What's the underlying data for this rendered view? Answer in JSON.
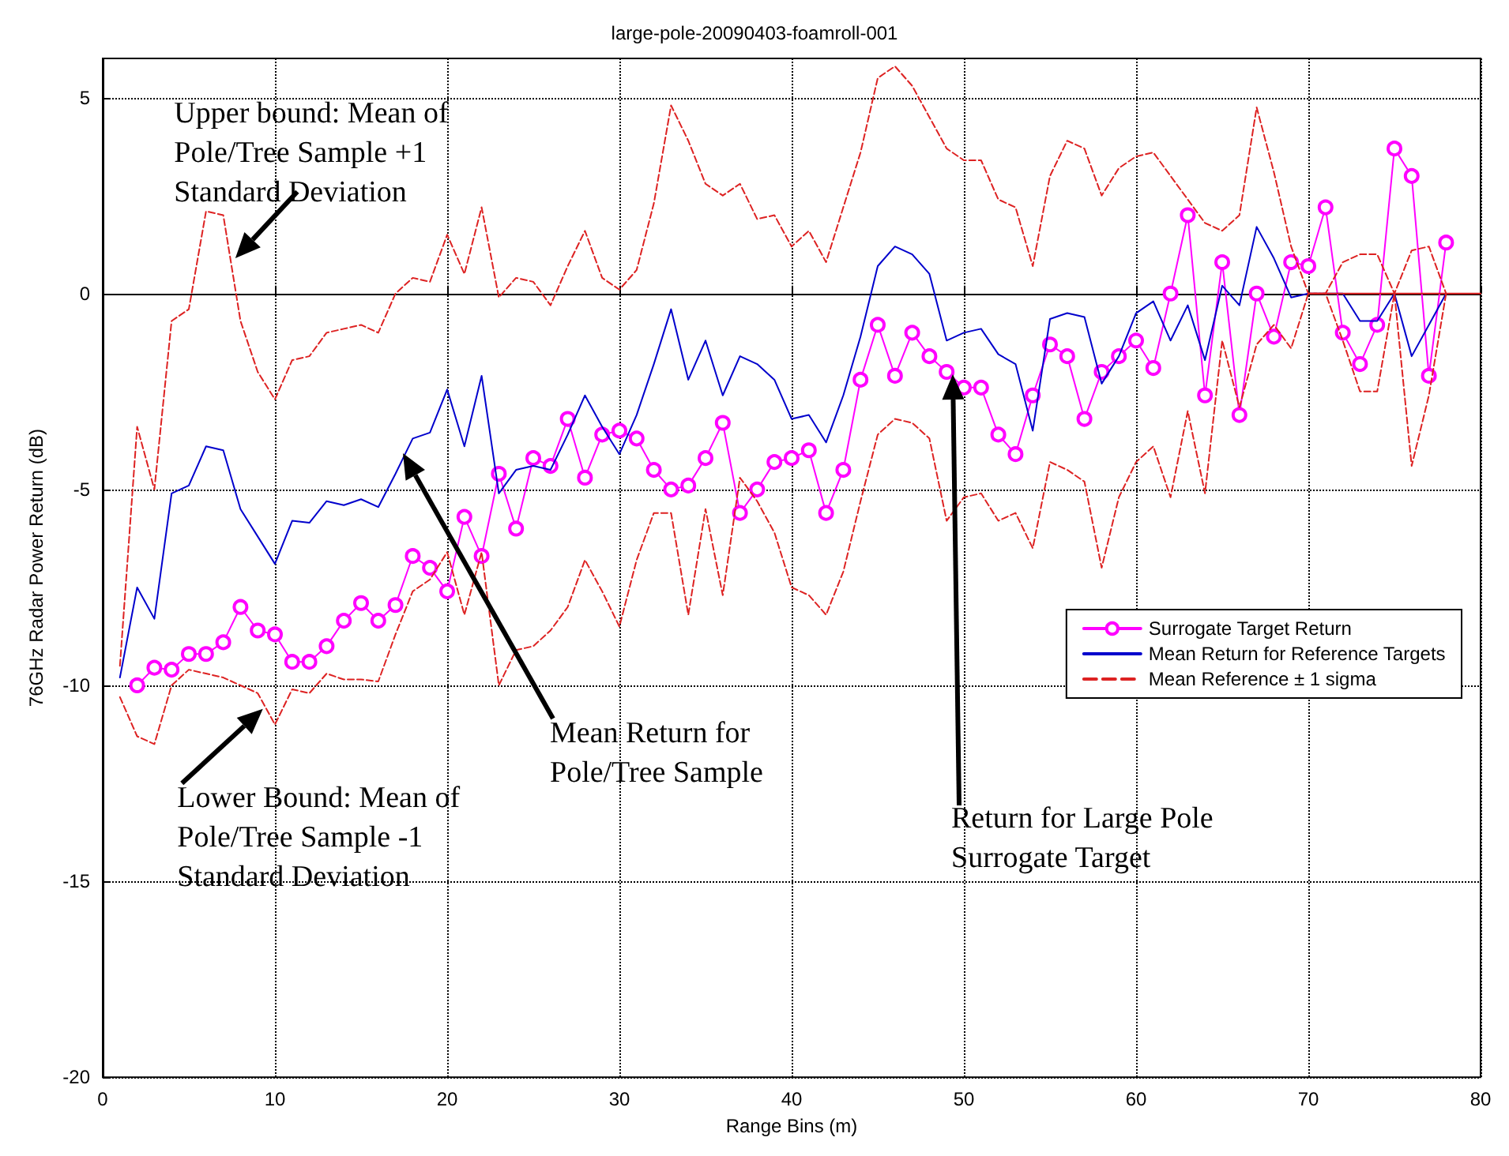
{
  "chart_data": {
    "type": "line",
    "title": "large-pole-20090403-foamroll-001",
    "xlabel": "Range Bins (m)",
    "ylabel": "76GHz Radar Power Return (dB)",
    "x": [
      1,
      2,
      3,
      4,
      5,
      6,
      7,
      8,
      9,
      10,
      11,
      12,
      13,
      14,
      15,
      16,
      17,
      18,
      19,
      20,
      21,
      22,
      23,
      24,
      25,
      26,
      27,
      28,
      29,
      30,
      31,
      32,
      33,
      34,
      35,
      36,
      37,
      38,
      39,
      40,
      41,
      42,
      43,
      44,
      45,
      46,
      47,
      48,
      49,
      50,
      51,
      52,
      53,
      54,
      55,
      56,
      57,
      58,
      59,
      60,
      61,
      62,
      63,
      64,
      65,
      66,
      67,
      68,
      69,
      70,
      71,
      72,
      73,
      74,
      75,
      76,
      77,
      78
    ],
    "series": [
      {
        "name": "Surrogate Target Return",
        "color": "#ff00ff",
        "marker": "circle",
        "line_style": "solid",
        "values": [
          null,
          -10.0,
          -9.55,
          -9.6,
          -9.2,
          -9.2,
          -8.9,
          -8.0,
          -8.6,
          -8.7,
          -9.4,
          -9.4,
          -9.0,
          -8.35,
          -7.9,
          -8.35,
          -7.95,
          -6.7,
          -7.0,
          -7.6,
          -5.7,
          -6.7,
          -4.6,
          -6.0,
          -4.2,
          -4.4,
          -3.2,
          -4.7,
          -3.6,
          -3.5,
          -3.7,
          -4.5,
          -5.0,
          -4.9,
          -4.2,
          -3.3,
          -5.6,
          -5.0,
          -4.3,
          -4.2,
          -4.0,
          -5.6,
          -4.5,
          -2.2,
          -0.8,
          -2.1,
          -1.0,
          -1.6,
          -2.0,
          -2.4,
          -2.4,
          -3.6,
          -4.1,
          -2.6,
          -1.3,
          -1.6,
          -3.2,
          -2.0,
          -1.6,
          -1.2,
          -1.9,
          0.0,
          2.0,
          -2.6,
          0.8,
          -3.1,
          0.0,
          -1.1,
          0.8,
          0.7,
          2.2,
          -1.0,
          -1.8,
          -0.8,
          3.7,
          3.0,
          -2.1,
          1.3
        ]
      },
      {
        "name": "Mean Return for Reference Targets",
        "color": "#0000cc",
        "marker": "none",
        "line_style": "solid",
        "values": [
          -9.8,
          -7.5,
          -8.3,
          -5.1,
          -4.9,
          -3.9,
          -4.0,
          -5.5,
          -6.2,
          -6.9,
          -5.8,
          -5.85,
          -5.3,
          -5.4,
          -5.25,
          -5.45,
          -4.6,
          -3.7,
          -3.55,
          -2.45,
          -3.9,
          -2.1,
          -5.1,
          -4.5,
          -4.4,
          -4.5,
          -3.6,
          -2.6,
          -3.4,
          -4.1,
          -3.1,
          -1.8,
          -0.4,
          -2.2,
          -1.2,
          -2.6,
          -1.6,
          -1.8,
          -2.2,
          -3.2,
          -3.1,
          -3.8,
          -2.6,
          -1.1,
          0.7,
          1.2,
          1.0,
          0.5,
          -1.2,
          -1.0,
          -0.9,
          -1.55,
          -1.8,
          -3.5,
          -0.65,
          -0.5,
          -0.6,
          -2.3,
          -1.6,
          -0.5,
          -0.2,
          -1.2,
          -0.3,
          -1.7,
          0.2,
          -0.3,
          1.7,
          0.9,
          -0.1,
          0.0,
          0.0,
          0.0,
          -0.7,
          -0.7,
          0.0,
          -1.6,
          -0.8,
          0.0
        ]
      },
      {
        "name": "Mean Reference ± 1 sigma",
        "color": "#dd2222",
        "marker": "none",
        "line_style": "dashed",
        "values": [
          -9.5,
          -3.4,
          -5.0,
          -0.7,
          -0.4,
          2.1,
          2.0,
          -0.7,
          -2.0,
          -2.7,
          -1.7,
          -1.6,
          -1.0,
          -0.9,
          -0.8,
          -1.0,
          0.0,
          0.4,
          0.3,
          1.5,
          0.5,
          2.2,
          -0.1,
          0.4,
          0.3,
          -0.3,
          0.7,
          1.6,
          0.4,
          0.1,
          0.6,
          2.3,
          4.8,
          3.9,
          2.8,
          2.5,
          2.8,
          1.9,
          2.0,
          1.2,
          1.6,
          0.8,
          2.2,
          3.6,
          5.5,
          5.8,
          5.3,
          4.5,
          3.7,
          3.4,
          3.4,
          2.4,
          2.2,
          0.7,
          3.0,
          3.9,
          3.7,
          2.5,
          3.2,
          3.5,
          3.6,
          3.0,
          2.4,
          1.8,
          1.6,
          2.0,
          4.75,
          3.1,
          1.2,
          0.0,
          0.0,
          0.8,
          1.0,
          1.0,
          0.0,
          1.1,
          1.2,
          0.0
        ]
      },
      {
        "color": "#dd2222",
        "marker": "none",
        "line_style": "dashed",
        "values": [
          -10.3,
          -11.3,
          -11.5,
          -10.0,
          -9.6,
          -9.7,
          -9.8,
          -10.0,
          -10.2,
          -11.0,
          -10.1,
          -10.2,
          -9.7,
          -9.85,
          -9.85,
          -9.9,
          -8.7,
          -7.6,
          -7.3,
          -6.6,
          -8.2,
          -6.6,
          -10.0,
          -9.1,
          -9.0,
          -8.6,
          -8.0,
          -6.8,
          -7.6,
          -8.5,
          -6.8,
          -5.6,
          -5.6,
          -8.2,
          -5.5,
          -7.7,
          -4.7,
          -5.3,
          -6.1,
          -7.5,
          -7.7,
          -8.2,
          -7.1,
          -5.3,
          -3.6,
          -3.2,
          -3.3,
          -3.7,
          -5.8,
          -5.2,
          -5.1,
          -5.8,
          -5.6,
          -6.5,
          -4.3,
          -4.5,
          -4.8,
          -7.0,
          -5.2,
          -4.3,
          -3.9,
          -5.2,
          -3.0,
          -5.1,
          -1.2,
          -2.9,
          -1.3,
          -0.8,
          -1.4,
          0.0,
          0.0,
          -1.2,
          -2.5,
          -2.5,
          0.0,
          -4.4,
          -2.6,
          0.0
        ]
      },
      {
        "color": "#dd2222",
        "marker": "none",
        "line_style": "solid",
        "x": [
          70,
          80
        ],
        "values": [
          0,
          0
        ]
      }
    ],
    "xlim": [
      0,
      80
    ],
    "xticks": [
      0,
      10,
      20,
      30,
      40,
      50,
      60,
      70,
      80
    ],
    "ylim": [
      -20,
      6
    ],
    "yticks": [
      -20,
      -15,
      -10,
      -5,
      0,
      5
    ],
    "grid": true,
    "legend": "right",
    "annotations": [
      {
        "text": "Upper bound: Mean of Pole/Tree Sample +1 Standard Deviation",
        "x": 7.7,
        "y": 0.9
      },
      {
        "text": "Lower Bound: Mean of Pole/Tree Sample -1 Standard Deviation",
        "x": 9.3,
        "y": -10.6
      },
      "Mean Return for Pole/Tree Sample",
      "Return for Large Pole Surrogate Target"
    ]
  }
}
